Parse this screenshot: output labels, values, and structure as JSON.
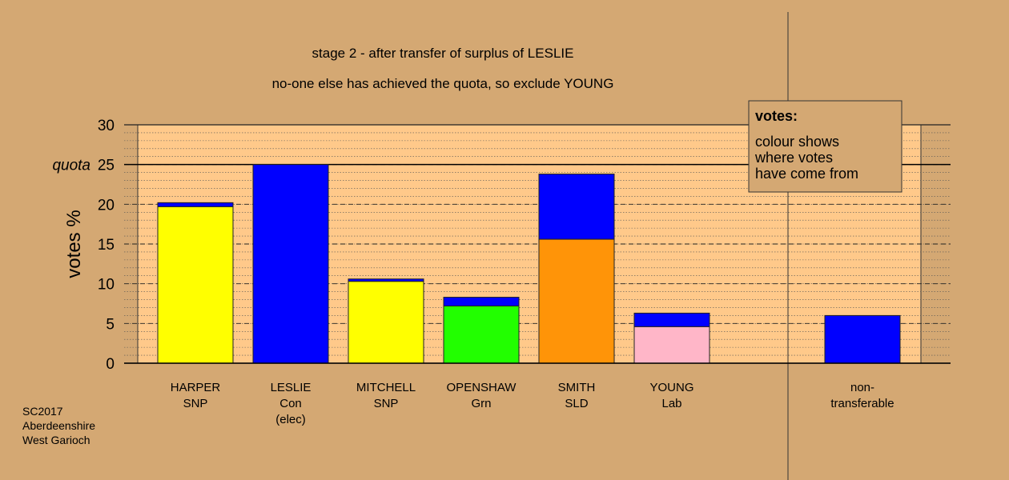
{
  "chart_data": {
    "type": "stacked_bar",
    "title": "stage 2 - after transfer of surplus of LESLIE",
    "subtitle": "no-one else has achieved the quota, so exclude YOUNG",
    "y_label": "votes %",
    "categories": [
      "HARPER\nSNP",
      "LESLIE\nCon\n(elec)",
      "MITCHELL\nSNP",
      "OPENSHAW\nGrn",
      "SMITH\nSLD",
      "YOUNG\nLab",
      null,
      "non-\ntransferable"
    ],
    "series": [
      {
        "colors": [
          "#ffff00",
          "#0000ff",
          "#ffff00",
          "#22ff00",
          "#ff9408",
          "#ffb6c8",
          null,
          "#0000ff"
        ],
        "values": [
          19.7,
          25,
          10.3,
          7.2,
          15.6,
          4.6,
          null,
          6.0
        ]
      },
      {
        "color": "#0000ff",
        "values": [
          0.5,
          0,
          0.3,
          1.1,
          8.2,
          1.7,
          null,
          0
        ]
      }
    ],
    "ylim": [
      0,
      30
    ],
    "yticks": [
      0,
      5,
      10,
      15,
      20,
      25,
      30
    ],
    "minor_grid_step": 1,
    "grid": true,
    "quota": {
      "value": 25,
      "label": "quota"
    },
    "legend": {
      "title": "votes:",
      "text": "colour shows\nwhere votes\nhave come from"
    },
    "footnote": "SC2017\nAberdeenshire\nWest Garioch"
  }
}
